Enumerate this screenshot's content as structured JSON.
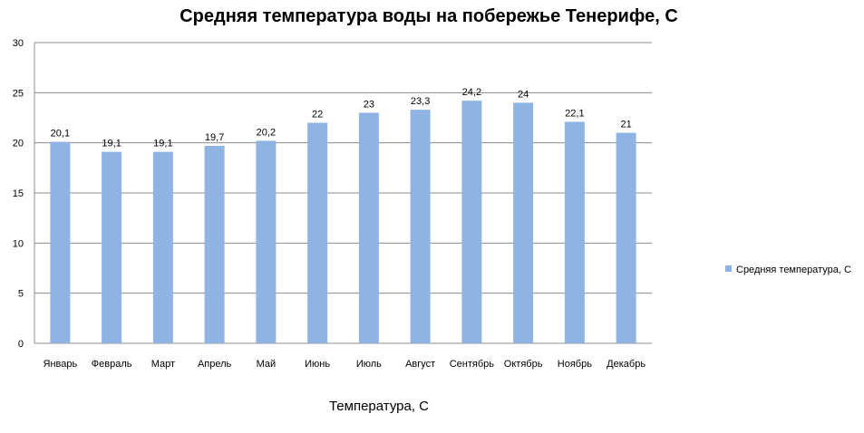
{
  "chart_data": {
    "type": "bar",
    "title": "Средняя температура воды на побережье Тенерифе, С",
    "xlabel": "Температура, С",
    "ylabel": "",
    "categories": [
      "Январь",
      "Февраль",
      "Март",
      "Апрель",
      "Май",
      "Июнь",
      "Июль",
      "Август",
      "Сентябрь",
      "Октябрь",
      "Ноябрь",
      "Декабрь"
    ],
    "series": [
      {
        "name": "Средняя температура, С",
        "values": [
          20.1,
          19.1,
          19.1,
          19.7,
          20.2,
          22,
          23,
          23.3,
          24.2,
          24,
          22.1,
          21
        ],
        "labels": [
          "20,1",
          "19,1",
          "19,1",
          "19,7",
          "20,2",
          "22",
          "23",
          "23,3",
          "24,2",
          "24",
          "22,1",
          "21"
        ],
        "color": "#8fb4e3"
      }
    ],
    "yticks": [
      "0",
      "5",
      "10",
      "15",
      "20",
      "25",
      "30"
    ],
    "ylim": [
      0,
      30
    ],
    "grid": true,
    "legend_position": "right",
    "gridline_color": "#8c8c8c"
  }
}
